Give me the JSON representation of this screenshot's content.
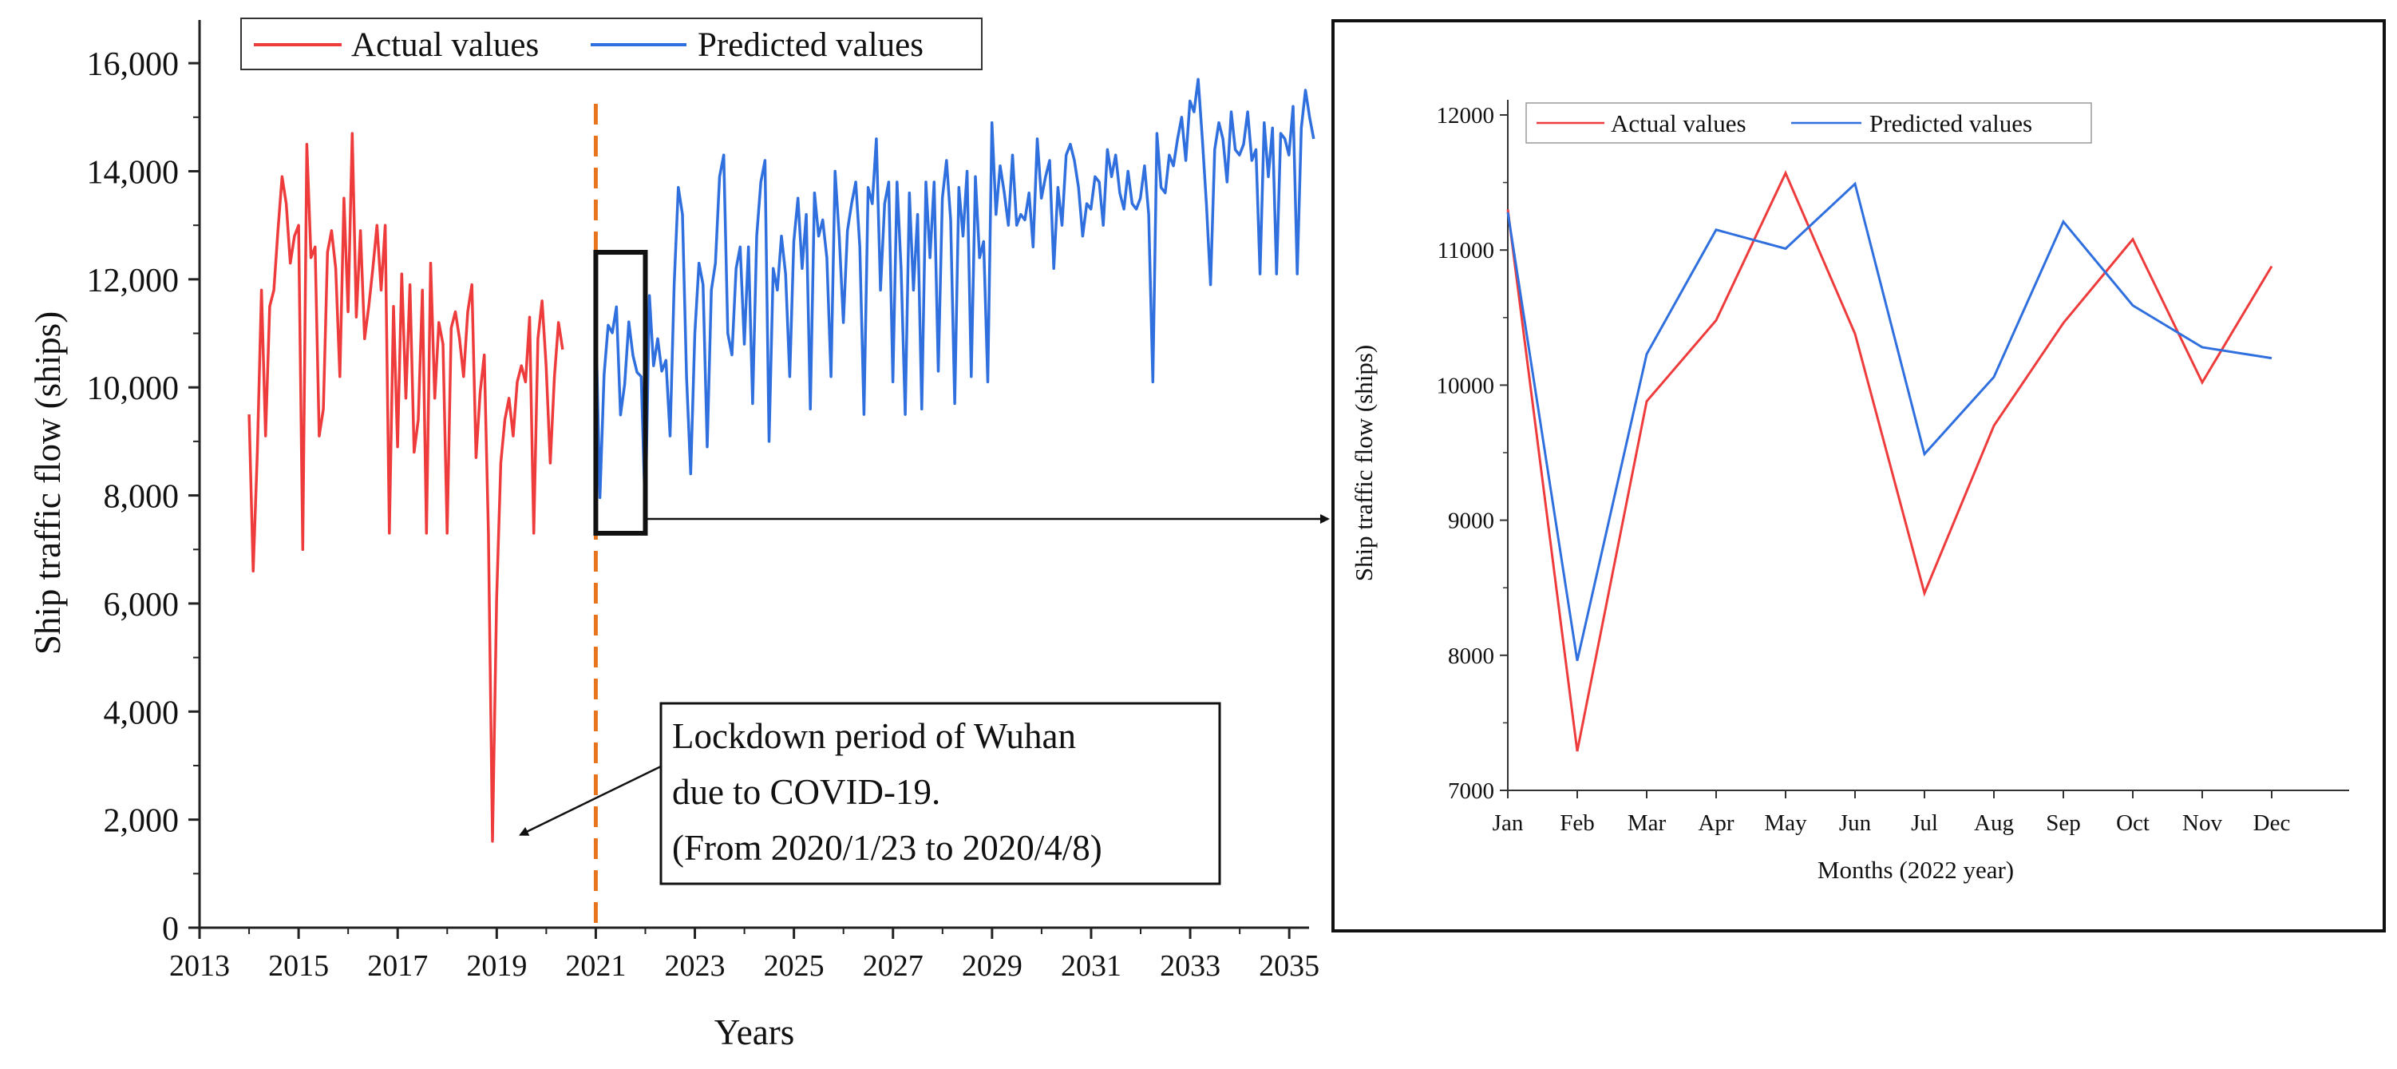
{
  "chart_data": [
    {
      "type": "line",
      "xlabel": "Years",
      "ylabel": "Ship traffic flow (ships)",
      "xlim": [
        2013,
        2035.4
      ],
      "ylim": [
        0,
        16800
      ],
      "x_ticks": [
        2013,
        2015,
        2017,
        2019,
        2021,
        2023,
        2025,
        2027,
        2029,
        2031,
        2033,
        2035
      ],
      "x_tick_labels": [
        "2013",
        "2015",
        "2017",
        "2019",
        "2021",
        "2023",
        "2025",
        "2027",
        "2029",
        "2031",
        "2033",
        "2035"
      ],
      "y_ticks": [
        0,
        2000,
        4000,
        6000,
        8000,
        10000,
        12000,
        14000,
        16000
      ],
      "y_tick_labels": [
        "0",
        "2,000",
        "4,000",
        "6,000",
        "8,000",
        "10,000",
        "12,000",
        "14,000",
        "16,000"
      ],
      "legend": [
        {
          "label": "Actual values",
          "color": "#ee3b3b"
        },
        {
          "label": "Predicted values",
          "color": "#2f6fde"
        }
      ],
      "vline_x": 2021,
      "vline_color": "#e8741e",
      "highlight_box": {
        "x_from": 2021.0,
        "x_to": 2022.0,
        "y_from": 7300,
        "y_to": 12500
      },
      "annotation": {
        "lines": [
          "Lockdown period of Wuhan",
          "due to COVID-19.",
          "(From 2020/1/23 to 2020/4/8)"
        ],
        "point_x": 2019.25,
        "point_y": 1600
      },
      "series": [
        {
          "name": "Actual values",
          "color": "#ee3b3b",
          "x_start": 2014.0,
          "x_step": 0.0833,
          "values": [
            9500,
            6600,
            8800,
            11800,
            9100,
            11500,
            11800,
            12900,
            13900,
            13400,
            12300,
            12800,
            13000,
            7000,
            14500,
            12400,
            12600,
            9100,
            9600,
            12500,
            12900,
            12200,
            10200,
            13500,
            11400,
            14700,
            11300,
            12900,
            10900,
            11500,
            12200,
            13000,
            11800,
            13000,
            7300,
            11500,
            8900,
            12100,
            9800,
            11900,
            8800,
            9400,
            11800,
            7300,
            12300,
            9800,
            11200,
            10800,
            7300,
            11100,
            11400,
            10900,
            10200,
            11400,
            11900,
            8700,
            9900,
            10600,
            7300,
            1600,
            6100,
            8600,
            9400,
            9800,
            9100,
            10100,
            10400,
            10100,
            11300,
            7300,
            10900,
            11600,
            10400,
            8600,
            10200,
            11200,
            10700
          ]
        },
        {
          "name": "Predicted values",
          "color": "#2f6fde",
          "x_start": 2021.0,
          "x_step": 0.0833,
          "values": [
            11280,
            7960,
            10230,
            11150,
            11010,
            11490,
            9490,
            10060,
            11210,
            10590,
            10280,
            10200,
            7600,
            11700,
            10400,
            10900,
            10300,
            10500,
            9100,
            11900,
            13700,
            13200,
            10200,
            8400,
            11000,
            12300,
            11900,
            8900,
            11800,
            12300,
            13900,
            14300,
            11000,
            10600,
            12200,
            12600,
            10800,
            12600,
            9700,
            12800,
            13800,
            14200,
            9000,
            12200,
            11800,
            12800,
            12100,
            10200,
            12700,
            13500,
            12200,
            13200,
            9600,
            13600,
            12800,
            13100,
            12400,
            10200,
            14000,
            12800,
            11200,
            12900,
            13400,
            13800,
            12600,
            9500,
            13700,
            13400,
            14600,
            11800,
            13400,
            13800,
            10100,
            13800,
            12200,
            9500,
            13600,
            11800,
            13200,
            9600,
            13800,
            12400,
            13800,
            10300,
            13500,
            14200,
            13100,
            9700,
            13700,
            12800,
            14000,
            10200,
            13900,
            12400,
            12700,
            10100,
            14900,
            13200,
            14100,
            13600,
            13000,
            14300,
            13000,
            13200,
            13100,
            13600,
            12600,
            14600,
            13500,
            13900,
            14200,
            12200,
            13700,
            13000,
            14300,
            14500,
            14200,
            13700,
            12800,
            13400,
            13300,
            13900,
            13800,
            13000,
            14400,
            13900,
            14300,
            13600,
            13300,
            14000,
            13400,
            13300,
            13500,
            14100,
            13200,
            10100,
            14700,
            13700,
            13600,
            14300,
            14100,
            14600,
            15000,
            14200,
            15300,
            15100,
            15700,
            14600,
            13400,
            11900,
            14400,
            14900,
            14600,
            13800,
            15100,
            14400,
            14300,
            14500,
            15100,
            14200,
            14400,
            12100,
            14900,
            13900,
            14800,
            12100,
            14700,
            14600,
            14300,
            15200,
            12100,
            14800,
            15500,
            15000,
            14600
          ]
        }
      ]
    },
    {
      "type": "line",
      "xlabel": "Months (2022 year)",
      "ylabel": "Ship traffic flow (ships)",
      "ylim": [
        7000,
        12000
      ],
      "categories": [
        "Jan",
        "Feb",
        "Mar",
        "Apr",
        "May",
        "Jun",
        "Jul",
        "Aug",
        "Sep",
        "Oct",
        "Nov",
        "Dec"
      ],
      "y_ticks": [
        7000,
        8000,
        9000,
        10000,
        11000,
        12000
      ],
      "y_tick_labels": [
        "7000",
        "8000",
        "9000",
        "10000",
        "11000",
        "12000"
      ],
      "legend": [
        {
          "label": "Actual values",
          "color": "#ee3b3b"
        },
        {
          "label": "Predicted values",
          "color": "#2f6fde"
        }
      ],
      "series": [
        {
          "name": "Actual values",
          "color": "#ee3b3b",
          "values": [
            11300,
            7290,
            9880,
            10480,
            11570,
            10380,
            8460,
            9700,
            10460,
            11080,
            10020,
            10880
          ]
        },
        {
          "name": "Predicted values",
          "color": "#2f6fde",
          "values": [
            11280,
            7960,
            10230,
            11150,
            11010,
            11490,
            9490,
            10060,
            11210,
            10590,
            10280,
            10200
          ]
        }
      ]
    }
  ]
}
